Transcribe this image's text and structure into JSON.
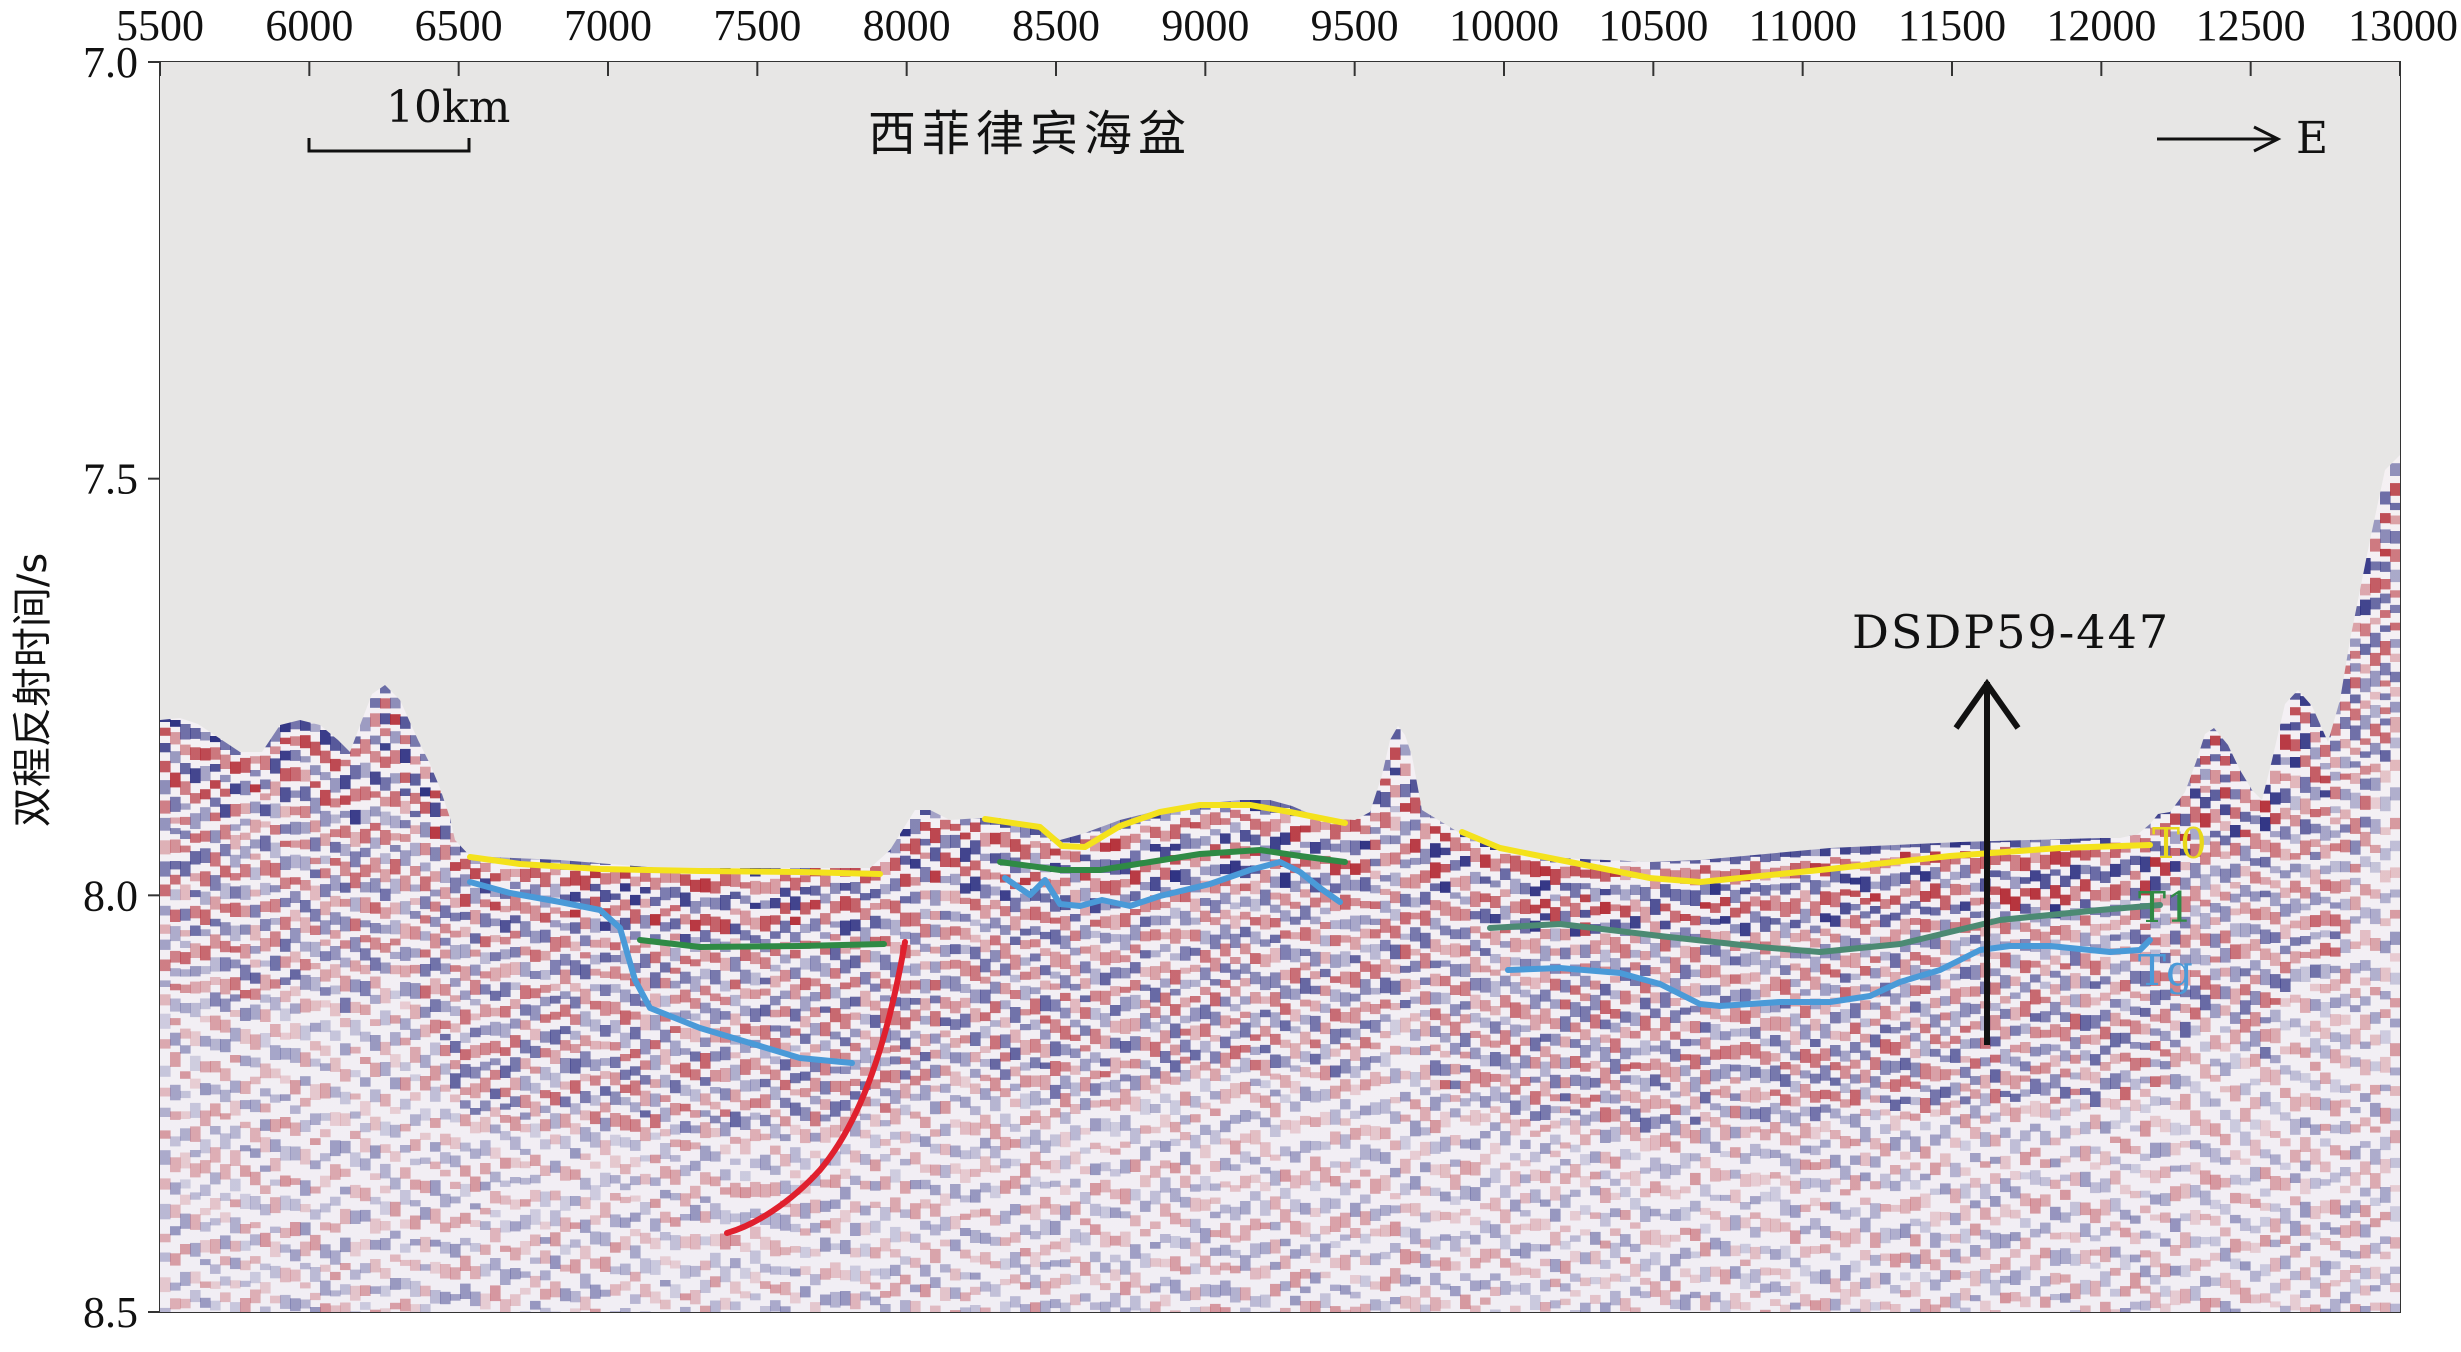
{
  "figure": {
    "x_axis": {
      "ticks": [
        "5500",
        "6000",
        "6500",
        "7000",
        "7500",
        "8000",
        "8500",
        "9000",
        "9500",
        "10000",
        "10500",
        "11000",
        "11500",
        "12000",
        "12500",
        "13000"
      ],
      "range": [
        5500,
        13000
      ]
    },
    "y_axis": {
      "title": "双程反射时间/s",
      "ticks": [
        "7.0",
        "7.5",
        "8.0",
        "8.5"
      ],
      "range": [
        7.0,
        8.5
      ]
    },
    "annotations": {
      "scale_bar": "10km",
      "basin_name": "西菲律宾海盆",
      "direction": "E",
      "site_label": "DSDP59-447",
      "horizon_t0": "T0",
      "horizon_t1": "T1",
      "horizon_tg": "Tg"
    },
    "colors": {
      "background": "#e7e6e5",
      "seismic_red": "#b0202a",
      "seismic_blue": "#1b1f78",
      "t0_line": "#f4e21c",
      "t1_line": "#2f8a45",
      "t1_line_east": "#4c8a73",
      "tg_line": "#4a9ad8",
      "fault_line": "#e0202e"
    }
  }
}
